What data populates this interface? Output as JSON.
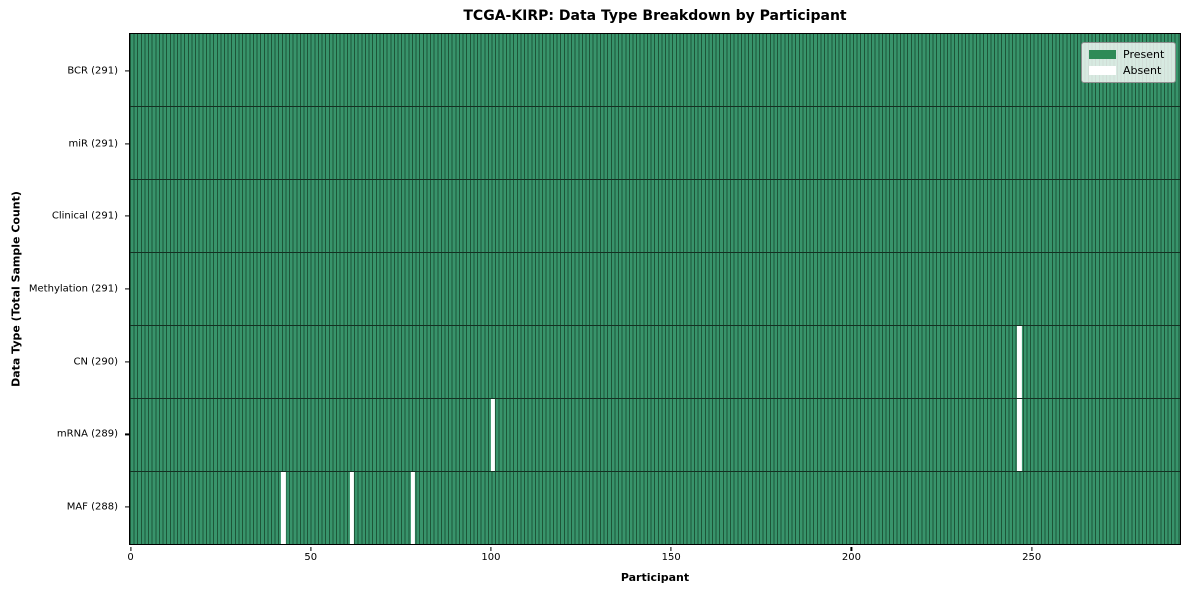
{
  "figure": {
    "title": "TCGA-KIRP: Data Type Breakdown by Participant",
    "xlabel": "Participant",
    "ylabel": "Data Type (Total Sample Count)"
  },
  "legend": {
    "items": [
      {
        "label": "Present",
        "color": "#2e8b57"
      },
      {
        "label": "Absent",
        "color": "#ffffff"
      }
    ]
  },
  "chart_data": {
    "type": "heatmap",
    "title": "TCGA-KIRP: Data Type Breakdown by Participant",
    "xlabel": "Participant",
    "ylabel": "Data Type (Total Sample Count)",
    "n_participants": 291,
    "x_ticks": [
      0,
      50,
      100,
      150,
      200,
      250
    ],
    "x_range": [
      0,
      291
    ],
    "grid": false,
    "legend_position": "upper right",
    "rows": [
      {
        "label": "BCR (291)",
        "data_type": "BCR",
        "present_count": 291,
        "absent_participants": []
      },
      {
        "label": "miR (291)",
        "data_type": "miR",
        "present_count": 291,
        "absent_participants": []
      },
      {
        "label": "Clinical (291)",
        "data_type": "Clinical",
        "present_count": 291,
        "absent_participants": []
      },
      {
        "label": "Methylation (291)",
        "data_type": "Methylation",
        "present_count": 291,
        "absent_participants": []
      },
      {
        "label": "CN (290)",
        "data_type": "CN",
        "present_count": 290,
        "absent_participants": [
          246
        ]
      },
      {
        "label": "mRNA (289)",
        "data_type": "mRNA",
        "present_count": 289,
        "absent_participants": [
          100,
          246
        ]
      },
      {
        "label": "MAF (288)",
        "data_type": "MAF",
        "present_count": 288,
        "absent_participants": [
          42,
          61,
          78
        ]
      }
    ],
    "colors": {
      "present": "#38946b",
      "absent": "#ffffff",
      "cell_edge": "#1d5638",
      "row_divider": "#143122"
    }
  }
}
